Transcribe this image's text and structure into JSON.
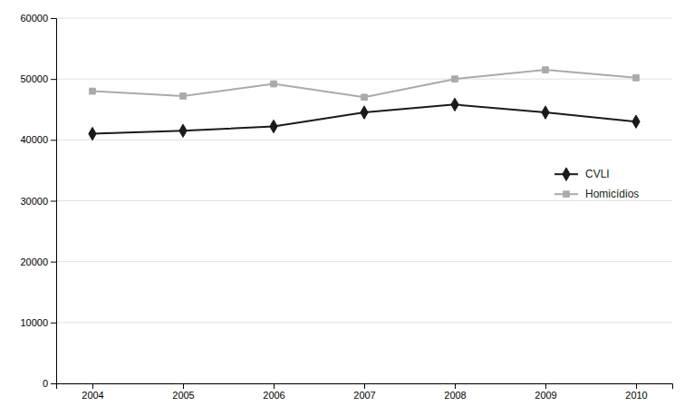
{
  "chart_data": {
    "type": "line",
    "x": [
      2004,
      2005,
      2006,
      2007,
      2008,
      2009,
      2010
    ],
    "series": [
      {
        "name": "CVLI",
        "color": "#1a1a1a",
        "marker": "diamond",
        "values": [
          41000,
          41500,
          42200,
          44500,
          45800,
          44500,
          43000
        ]
      },
      {
        "name": "Homicídios",
        "color": "#aaaaaa",
        "marker": "square",
        "values": [
          48000,
          47200,
          49200,
          47000,
          50000,
          51500,
          50200
        ]
      }
    ],
    "xlim": [
      2003.6,
      2010.4
    ],
    "xticks": [
      2004,
      2005,
      2006,
      2007,
      2008,
      2009,
      2010
    ],
    "ylim": [
      0,
      60000
    ],
    "yticks": [
      0,
      10000,
      20000,
      30000,
      40000,
      50000,
      60000
    ],
    "grid": true,
    "legend": "right"
  }
}
